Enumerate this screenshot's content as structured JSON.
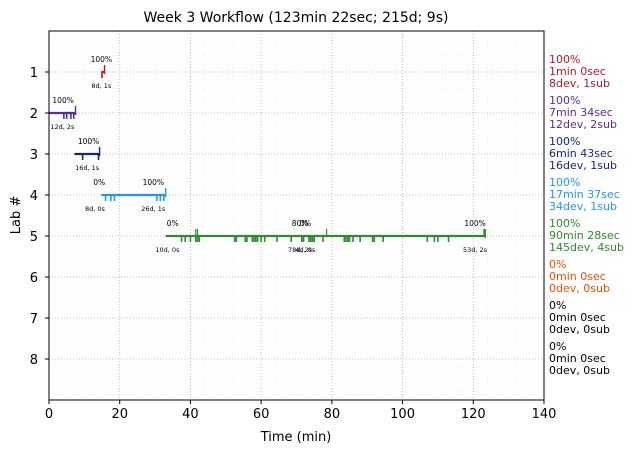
{
  "chart_data": {
    "type": "timeline",
    "title": "Week 3 Workflow (123min 22sec; 215d; 9s)",
    "xlabel": "Time (min)",
    "ylabel": "Lab #",
    "xlim": [
      0,
      140
    ],
    "ylim": [
      9,
      0
    ],
    "xticks": [
      "0",
      "20",
      "40",
      "60",
      "80",
      "100",
      "120",
      "140"
    ],
    "yticks": [
      "1",
      "2",
      "3",
      "4",
      "5",
      "6",
      "7",
      "8"
    ],
    "grid": true,
    "labs": [
      {
        "lab": 1,
        "color": "#b2182b",
        "start": 14.8,
        "end": 15.7,
        "ticks": [
          15.0
        ],
        "stats": [
          "100%",
          "1min 0sec",
          "8dev, 1sub"
        ],
        "annotations": [
          {
            "x": 14.8,
            "text": "100%",
            "pos": "above"
          },
          {
            "x": 14.8,
            "text": "8d, 1s",
            "pos": "below"
          }
        ]
      },
      {
        "lab": 2,
        "color": "#5a2d91",
        "start": 0,
        "end": 7.5,
        "ticks": [
          4.2,
          5.0,
          6.2,
          7.0
        ],
        "stats": [
          "100%",
          "7min 34sec",
          "12dev, 2sub"
        ],
        "annotations": [
          {
            "x": 4.0,
            "text": "100%",
            "pos": "above"
          },
          {
            "x": 3.8,
            "text": "12d, 2s",
            "pos": "below"
          }
        ]
      },
      {
        "lab": 3,
        "color": "#1a237e",
        "start": 7.2,
        "end": 14.3,
        "ticks": [
          9.5,
          14.0
        ],
        "stats": [
          "100%",
          "6min 43sec",
          "16dev, 1sub"
        ],
        "annotations": [
          {
            "x": 11.2,
            "text": "100%",
            "pos": "above"
          },
          {
            "x": 10.8,
            "text": "16d, 1s",
            "pos": "below"
          }
        ]
      },
      {
        "lab": 4,
        "color": "#2196f3",
        "start": 14.8,
        "end": 33.0,
        "ticks": [
          16.0,
          17.5,
          18.5,
          30.5,
          31.5,
          32.5
        ],
        "stats": [
          "100%",
          "17min 37sec",
          "34dev, 1sub"
        ],
        "annotations": [
          {
            "x": 14.2,
            "text": "0%",
            "pos": "above"
          },
          {
            "x": 13.0,
            "text": "8d, 0s",
            "pos": "below"
          },
          {
            "x": 29.5,
            "text": "100%",
            "pos": "above"
          },
          {
            "x": 29.5,
            "text": "26d, 1s",
            "pos": "below"
          }
        ]
      },
      {
        "lab": 5,
        "color": "#2e8b2e",
        "start": 33.0,
        "end": 123.4,
        "ticks": [
          37.5,
          38.5,
          40.0,
          41.5,
          42.0,
          42.5,
          52.5,
          53.0,
          55.5,
          56.0,
          57.5,
          58.0,
          58.5,
          59.0,
          60.0,
          61.0,
          64.5,
          68.5,
          71.5,
          72.0,
          73.5,
          74.0,
          74.5,
          75.0,
          77.5,
          83.5,
          84.0,
          84.5,
          85.0,
          86.0,
          88.0,
          91.5,
          92.0,
          94.5,
          107.0,
          109.0,
          110.0,
          113.0
        ],
        "ticks_up": [
          41.5,
          42.0,
          78.5,
          123.0
        ],
        "stats": [
          "100%",
          "90min 28sec",
          "145dev, 4sub"
        ],
        "annotations": [
          {
            "x": 35.0,
            "text": "0%",
            "pos": "above"
          },
          {
            "x": 33.5,
            "text": "10d, 0s",
            "pos": "below"
          },
          {
            "x": 71.0,
            "text": "80%",
            "pos": "above"
          },
          {
            "x": 72.5,
            "text": "0%",
            "pos": "above"
          },
          {
            "x": 71.0,
            "text": "78d, 2s",
            "pos": "below"
          },
          {
            "x": 72.5,
            "text": "4d, 0s",
            "pos": "below"
          },
          {
            "x": 120.5,
            "text": "100%",
            "pos": "above"
          },
          {
            "x": 120.5,
            "text": "53d, 2s",
            "pos": "below"
          }
        ]
      },
      {
        "lab": 6,
        "color": "#e65100",
        "start": null,
        "end": null,
        "ticks": [],
        "stats": [
          "0%",
          "0min 0sec",
          "0dev, 0sub"
        ],
        "annotations": []
      },
      {
        "lab": 7,
        "color": "#000000",
        "start": null,
        "end": null,
        "ticks": [],
        "stats": [
          "0%",
          "0min 0sec",
          "0dev, 0sub"
        ],
        "annotations": []
      },
      {
        "lab": 8,
        "color": "#000000",
        "start": null,
        "end": null,
        "ticks": [],
        "stats": [
          "0%",
          "0min 0sec",
          "0dev, 0sub"
        ],
        "annotations": []
      }
    ]
  }
}
